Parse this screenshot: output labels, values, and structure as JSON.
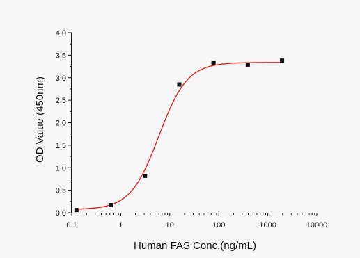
{
  "chart_data": {
    "type": "scatter",
    "title": "",
    "xlabel": "Human FAS Conc.(ng/mL)",
    "ylabel": "OD Value (450nm)",
    "x_scale": "log",
    "xlim": [
      0.1,
      10000
    ],
    "ylim": [
      0,
      4.0
    ],
    "x_ticks": [
      0.1,
      1,
      10,
      100,
      1000,
      10000
    ],
    "x_tick_labels": [
      "0.1",
      "1",
      "10",
      "100",
      "1000",
      "10000"
    ],
    "y_ticks": [
      0,
      0.5,
      1.0,
      1.5,
      2.0,
      2.5,
      3.0,
      3.5,
      4.0
    ],
    "y_tick_labels": [
      "0.0",
      "0.5",
      "1.0",
      "1.5",
      "2.0",
      "2.5",
      "3.0",
      "3.5",
      "4.0"
    ],
    "grid": false,
    "series": [
      {
        "type": "scatter",
        "color": "#111111",
        "marker": "square",
        "x": [
          0.125,
          0.625,
          3.125,
          15.625,
          78.125,
          390.625,
          1953
        ],
        "y": [
          0.06,
          0.17,
          0.82,
          2.85,
          3.33,
          3.29,
          3.38
        ]
      },
      {
        "type": "fitted-curve",
        "color": "#e8201c",
        "model": "4PL",
        "params": {
          "bottom": 0.07,
          "top": 3.34,
          "ec50": 6.0,
          "hill": 1.5
        },
        "x_range": [
          0.125,
          1953
        ]
      }
    ]
  }
}
